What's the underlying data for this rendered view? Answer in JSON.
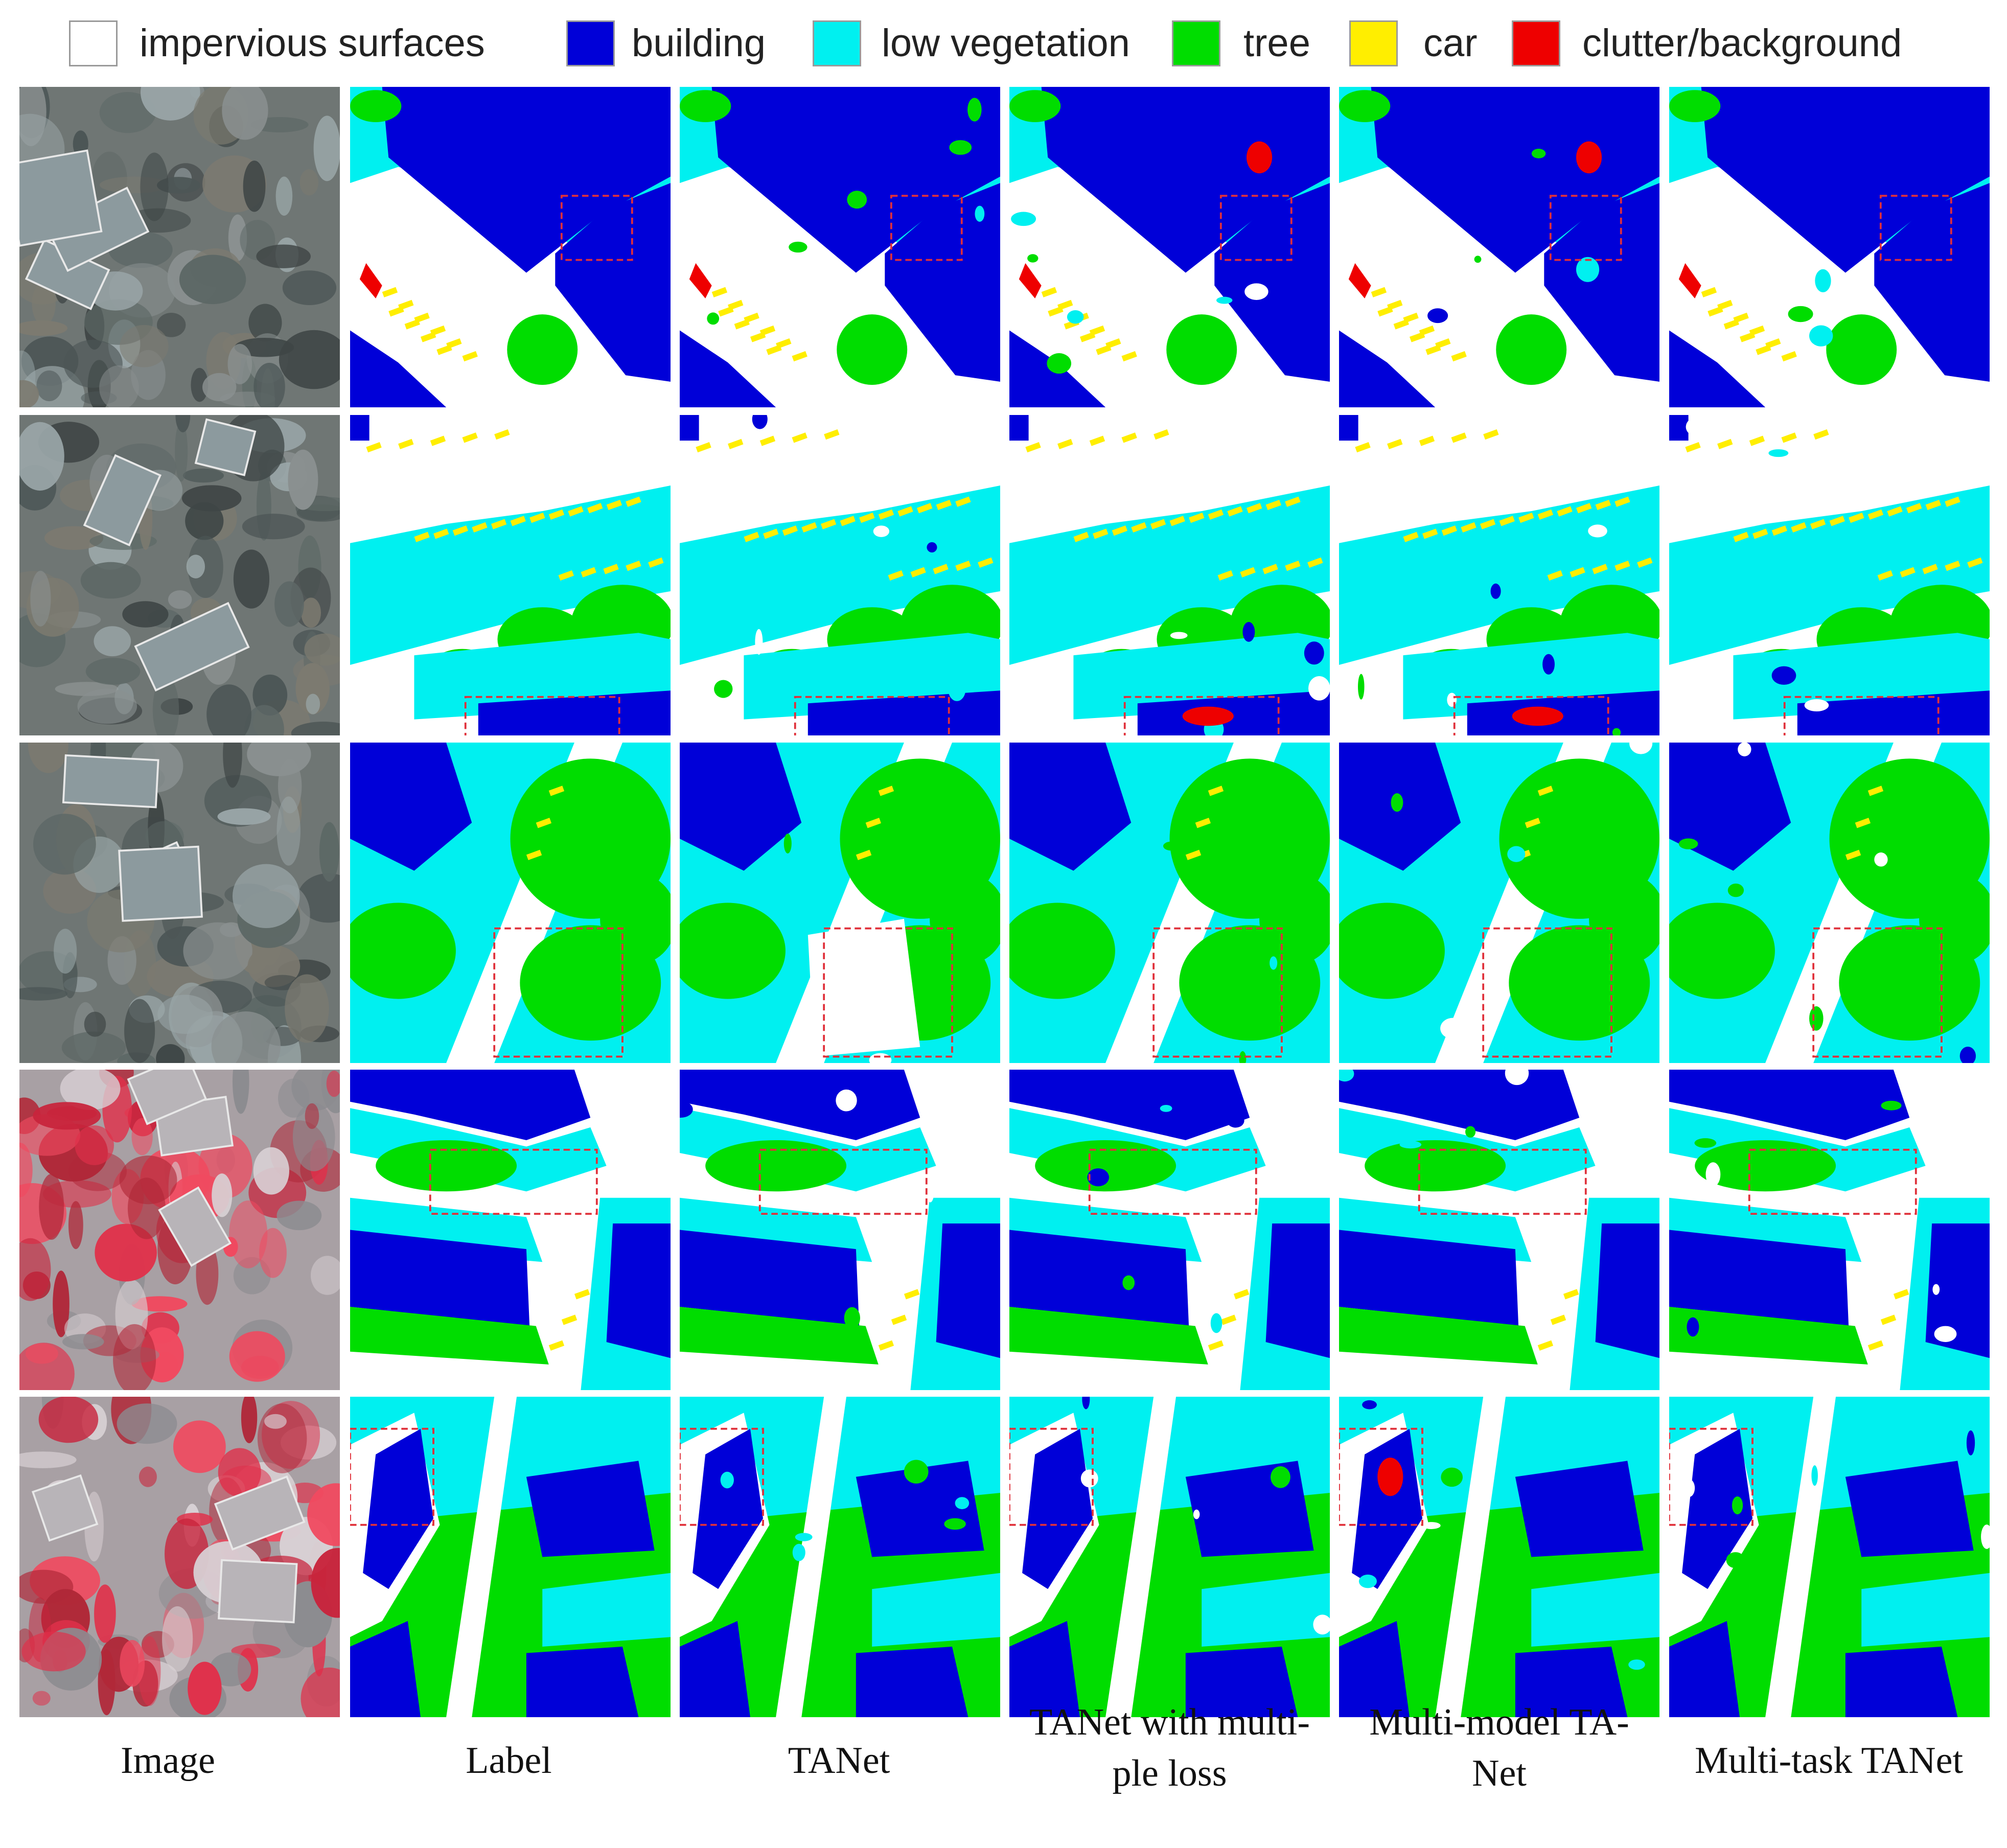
{
  "legend": [
    {
      "label": "impervious surfaces",
      "color": "#ffffff"
    },
    {
      "label": "building",
      "color": "#0000d8"
    },
    {
      "label": "low vegetation",
      "color": "#00f0f0"
    },
    {
      "label": "tree",
      "color": "#00dd00"
    },
    {
      "label": "car",
      "color": "#ffee00"
    },
    {
      "label": "clutter/background",
      "color": "#ee0000"
    }
  ],
  "columns": [
    "Image",
    "Label",
    "TANet",
    "TANet with multi-\nple loss",
    "Multi-model TA-\nNet",
    "Multi-task TANet"
  ],
  "colors": {
    "impervious": "#ffffff",
    "building": "#0000d8",
    "low_vegetation": "#00f0f0",
    "tree": "#00dd00",
    "car": "#ffee00",
    "clutter": "#ee0000",
    "highlight_box": "#e0303a"
  }
}
